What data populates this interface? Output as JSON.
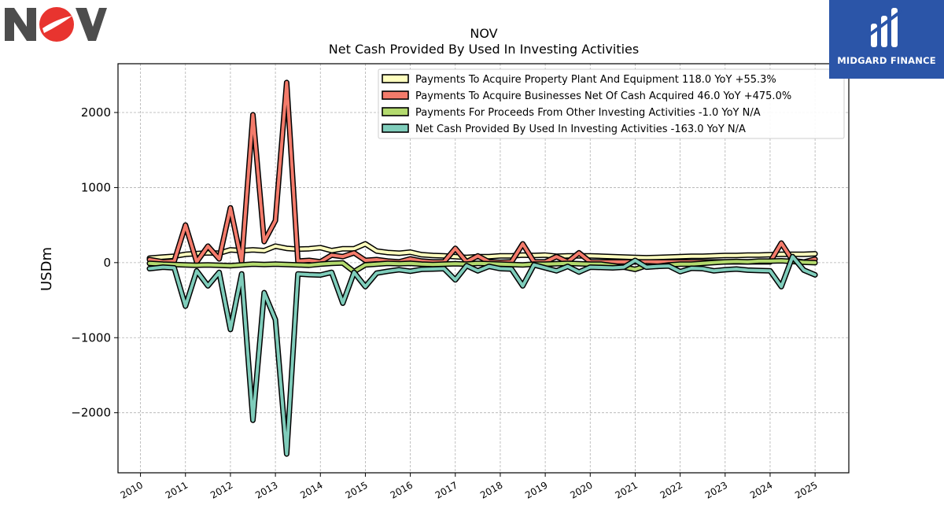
{
  "logos": {
    "company": "NOV",
    "publisher": "MIDGARD FINANCE"
  },
  "chart_data": {
    "type": "line",
    "title": "NOV",
    "subtitle": "Net Cash Provided By Used In Investing Activities",
    "xlabel": "",
    "ylabel": "USDm",
    "xlim": [
      2009.5,
      2025.75
    ],
    "ylim": [
      -2800,
      2650
    ],
    "yticks": [
      -2000,
      -1000,
      0,
      1000,
      2000
    ],
    "ytick_labels": [
      "−2000",
      "−1000",
      "0",
      "1000",
      "2000"
    ],
    "xticks": [
      2010,
      2011,
      2012,
      2013,
      2014,
      2015,
      2016,
      2017,
      2018,
      2019,
      2020,
      2021,
      2022,
      2023,
      2024,
      2025
    ],
    "grid": true,
    "legend_position": "top-right",
    "x": [
      2010.2,
      2010.5,
      2010.75,
      2011.0,
      2011.25,
      2011.5,
      2011.75,
      2012.0,
      2012.25,
      2012.5,
      2012.75,
      2013.0,
      2013.25,
      2013.5,
      2013.75,
      2014.0,
      2014.25,
      2014.5,
      2014.75,
      2015.0,
      2015.25,
      2015.5,
      2015.75,
      2016.0,
      2016.25,
      2016.5,
      2016.75,
      2017.0,
      2017.25,
      2017.5,
      2017.75,
      2018.0,
      2018.25,
      2018.5,
      2018.75,
      2019.0,
      2019.25,
      2019.5,
      2019.75,
      2020.0,
      2020.25,
      2020.5,
      2020.75,
      2021.0,
      2021.25,
      2021.5,
      2021.75,
      2022.0,
      2022.25,
      2022.5,
      2022.75,
      2023.0,
      2023.25,
      2023.5,
      2023.75,
      2024.0,
      2024.25,
      2024.5,
      2024.75,
      2025.0
    ],
    "series": [
      {
        "name": "Payments To Acquire Property Plant And Equipment  118.0 YoY +55.3%",
        "color": "#ffffbf",
        "values": [
          60,
          75,
          85,
          110,
          120,
          130,
          125,
          170,
          160,
          170,
          160,
          220,
          190,
          180,
          185,
          200,
          160,
          185,
          185,
          250,
          155,
          135,
          125,
          140,
          105,
          95,
          90,
          80,
          70,
          80,
          80,
          90,
          90,
          100,
          95,
          100,
          85,
          90,
          90,
          90,
          85,
          80,
          75,
          70,
          65,
          70,
          75,
          80,
          85,
          85,
          90,
          95,
          95,
          100,
          100,
          105,
          110,
          110,
          110,
          118
        ]
      },
      {
        "name": "Payments To Acquire Businesses Net Of Cash Acquired  46.0 YoY +475.0%",
        "color": "#f47b6b",
        "values": [
          40,
          10,
          20,
          500,
          10,
          220,
          50,
          730,
          10,
          1970,
          280,
          560,
          2400,
          20,
          30,
          10,
          100,
          80,
          130,
          30,
          40,
          20,
          10,
          50,
          20,
          10,
          10,
          190,
          10,
          90,
          10,
          5,
          10,
          250,
          10,
          10,
          80,
          10,
          130,
          10,
          10,
          10,
          10,
          10,
          10,
          10,
          10,
          10,
          10,
          10,
          10,
          10,
          10,
          10,
          10,
          10,
          260,
          30,
          8,
          46
        ]
      },
      {
        "name": "Payments For Proceeds From Other Investing Activities  -1.0 YoY N/A",
        "color": "#b3da6e",
        "values": [
          -10,
          -20,
          -25,
          -30,
          -35,
          -30,
          -35,
          -40,
          -30,
          -20,
          -25,
          -20,
          -25,
          -30,
          -35,
          -20,
          -10,
          -5,
          -120,
          -30,
          -20,
          -10,
          -15,
          -10,
          -20,
          -25,
          -20,
          -15,
          -20,
          -10,
          -15,
          -20,
          -25,
          -30,
          -20,
          -20,
          -15,
          -10,
          -15,
          -20,
          -20,
          -40,
          -60,
          -90,
          -40,
          -50,
          -30,
          -20,
          -20,
          -10,
          0,
          10,
          15,
          10,
          20,
          20,
          25,
          15,
          5,
          -1
        ]
      },
      {
        "name": "Net Cash Provided By Used In Investing Activities  -163.0 YoY N/A",
        "color": "#7fcdbb",
        "values": [
          -80,
          -60,
          -70,
          -580,
          -110,
          -310,
          -130,
          -890,
          -150,
          -2100,
          -400,
          -760,
          -2550,
          -150,
          -160,
          -165,
          -130,
          -540,
          -130,
          -320,
          -140,
          -115,
          -95,
          -115,
          -90,
          -85,
          -80,
          -230,
          -40,
          -110,
          -50,
          -80,
          -85,
          -310,
          -30,
          -70,
          -110,
          -50,
          -125,
          -60,
          -65,
          -70,
          -60,
          30,
          -60,
          -50,
          -45,
          -120,
          -75,
          -80,
          -110,
          -95,
          -85,
          -100,
          -105,
          -110,
          -320,
          80,
          -100,
          -163
        ]
      }
    ]
  }
}
